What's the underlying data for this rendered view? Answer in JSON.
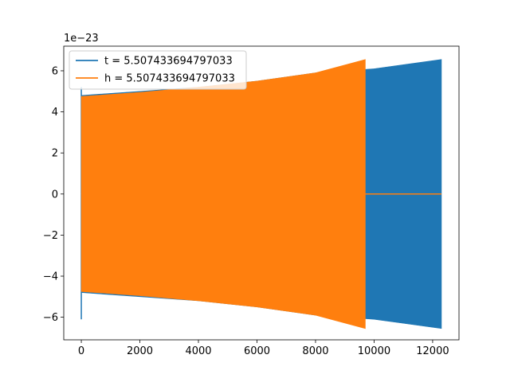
{
  "chart_data": {
    "type": "line",
    "title": "",
    "xlabel": "",
    "ylabel": "",
    "scale_label": "1e−23",
    "xlim": [
      -600,
      12900
    ],
    "ylim": [
      -7.1,
      7.2
    ],
    "xticks": [
      0,
      2000,
      4000,
      6000,
      8000,
      10000,
      12000
    ],
    "xtick_labels": [
      "0",
      "2000",
      "4000",
      "6000",
      "8000",
      "10000",
      "12000"
    ],
    "yticks": [
      -6,
      -4,
      -2,
      0,
      2,
      4,
      6
    ],
    "ytick_labels": [
      "−6",
      "−4",
      "−2",
      "0",
      "2",
      "4",
      "6"
    ],
    "grid": false,
    "legend_position": "top-left",
    "series": [
      {
        "name": "t = 5.507433694797033",
        "color": "#1f77b4",
        "envelope": {
          "x": [
            0,
            2000,
            4000,
            6000,
            8000,
            10000,
            12300
          ],
          "upper": [
            4.8,
            5.0,
            5.2,
            5.5,
            5.9,
            6.1,
            6.55
          ],
          "lower": [
            -4.8,
            -5.0,
            -5.2,
            -5.5,
            -5.9,
            -6.1,
            -6.55
          ]
        },
        "spikes": [
          {
            "x": 0,
            "y": 5.2
          },
          {
            "x": 0,
            "y": -6.1
          }
        ]
      },
      {
        "name": "h = 5.507433694797033",
        "color": "#ff7f0e",
        "envelope": {
          "x": [
            0,
            2000,
            4000,
            6000,
            8000,
            9700
          ],
          "upper": [
            4.75,
            4.95,
            5.2,
            5.5,
            5.9,
            6.55
          ],
          "lower": [
            -4.75,
            -4.95,
            -5.2,
            -5.5,
            -5.9,
            -6.55
          ]
        },
        "tail": {
          "x": [
            9700,
            12300
          ],
          "y": [
            0,
            0
          ]
        }
      }
    ]
  }
}
